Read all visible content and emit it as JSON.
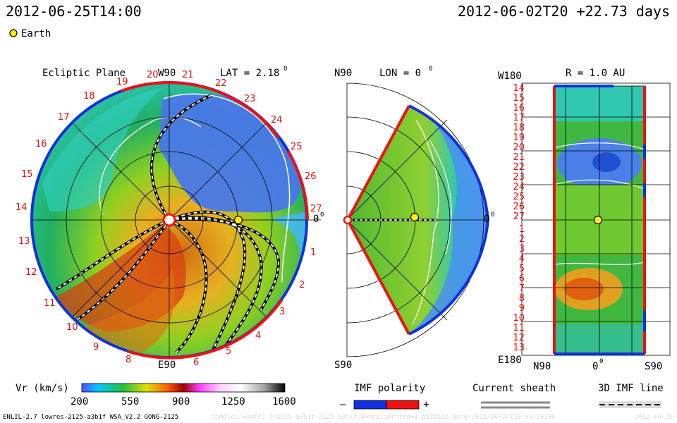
{
  "header": {
    "left_time": "2012-06-25T14:00",
    "right_time": "2012-06-02T20 +22.73 days"
  },
  "legend": {
    "earth_label": "Earth"
  },
  "ecliptic": {
    "title": "Ecliptic Plane",
    "top_label": "W90",
    "lat_label": "LAT = 2.18",
    "deg_mark": "0",
    "bottom_label": "E90",
    "right_label": "0",
    "numbers": [
      "19",
      "20",
      "21",
      "22",
      "23",
      "24",
      "25",
      "26",
      "27",
      "1",
      "2",
      "3",
      "4",
      "5",
      "6",
      "8",
      "9",
      "10",
      "11",
      "12",
      "13",
      "14",
      "15",
      "16",
      "17",
      "18"
    ]
  },
  "meridional": {
    "top_label": "N90",
    "lon_label": "LON = 0",
    "deg_mark": "0",
    "bottom_label": "S90",
    "right_label": "0"
  },
  "radial": {
    "top_left": "W180",
    "r_label": "R = 1.0 AU",
    "bottom_left": "E180",
    "x_left": "N90",
    "x_mid": "0",
    "x_right": "S90",
    "rows": [
      "14",
      "15",
      "16",
      "17",
      "18",
      "19",
      "20",
      "21",
      "22",
      "23",
      "24",
      "25",
      "26",
      "27",
      "1",
      "2",
      "3",
      "4",
      "5",
      "6",
      "7",
      "8",
      "9",
      "10",
      "11",
      "12",
      "13"
    ]
  },
  "colorbar": {
    "label": "Vr (km/s)",
    "ticks": [
      "200",
      "550",
      "900",
      "1250",
      "1600"
    ]
  },
  "imf": {
    "title": "IMF polarity",
    "minus": "–",
    "plus": "+"
  },
  "sheath": {
    "title": "Current sheath"
  },
  "imf3d": {
    "title": "3D IMF line"
  },
  "footer": {
    "left": "ENLIL-2.7 lowres-2125-a3b1f WSA_V2.2 GONG-2125",
    "mid": "samples/wsatr2.7/2125-a3b1f-2125-a3b1f.8=mcp1amrnted=1.p53a5d2.gong-2012/06/24T10:51/20100",
    "right": "2012-06-29"
  },
  "colors": {
    "positive": "#ee1111",
    "negative": "#1030e0",
    "earth": "#ffee00"
  }
}
